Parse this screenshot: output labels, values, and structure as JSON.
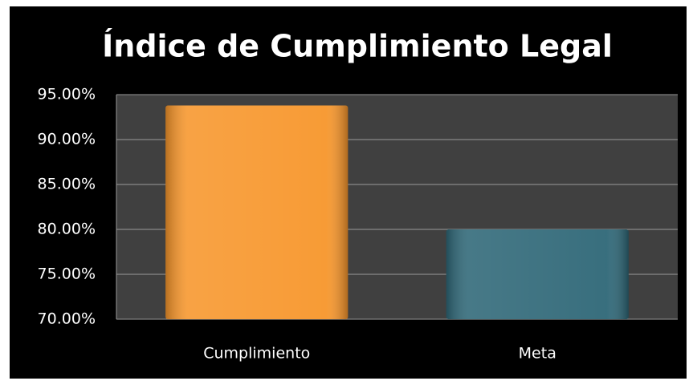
{
  "chart_data": {
    "type": "bar",
    "title": "Índice de Cumplimiento Legal",
    "categories": [
      "Cumplimiento",
      "Meta"
    ],
    "values": [
      93.8,
      80
    ],
    "colors": [
      "#f7962b",
      "#2e6777"
    ],
    "ylim": [
      70,
      95
    ],
    "yticks": [
      {
        "value": 70,
        "label": "70.00%"
      },
      {
        "value": 75,
        "label": "75.00%"
      },
      {
        "value": 80,
        "label": "80.00%"
      },
      {
        "value": 85,
        "label": "85.00%"
      },
      {
        "value": 90,
        "label": "90.00%"
      },
      {
        "value": 95,
        "label": "95.00%"
      }
    ],
    "grid": true
  }
}
